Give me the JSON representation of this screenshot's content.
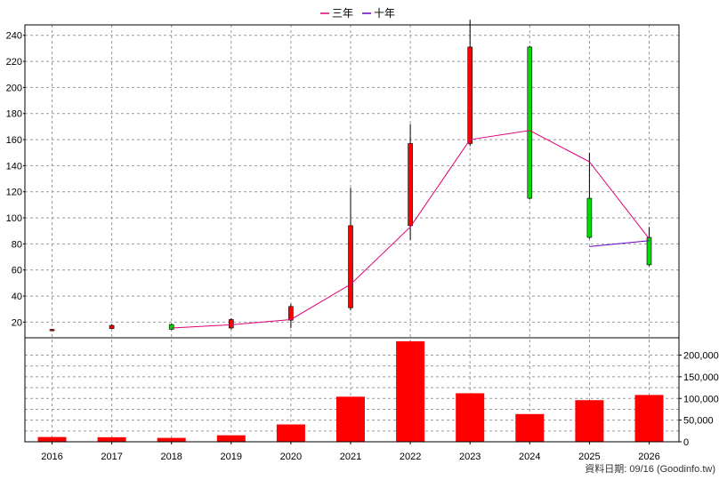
{
  "chart_data": {
    "type": "candlestick",
    "legend_position": "top-center",
    "grid": true,
    "categories": [
      "2016",
      "2017",
      "2018",
      "2019",
      "2020",
      "2021",
      "2022",
      "2023",
      "2024",
      "2025",
      "2026"
    ],
    "price_panel": {
      "ylim": [
        8,
        248
      ],
      "yticks": [
        20,
        40,
        60,
        80,
        100,
        120,
        140,
        160,
        180,
        200,
        220,
        240
      ],
      "candles": [
        {
          "year": "2016",
          "open": 14.2,
          "close": 14.4,
          "high": 14.8,
          "low": 13.4
        },
        {
          "year": "2017",
          "open": 15.0,
          "close": 17.5,
          "high": 18.2,
          "low": 14.8
        },
        {
          "year": "2018",
          "open": 18.2,
          "close": 14.5,
          "high": 19.0,
          "low": 14.0
        },
        {
          "year": "2019",
          "open": 15.5,
          "close": 22.0,
          "high": 23.0,
          "low": 14.5
        },
        {
          "year": "2020",
          "open": 21.5,
          "close": 32.0,
          "high": 34.0,
          "low": 15.5
        },
        {
          "year": "2021",
          "open": 31.0,
          "close": 94.0,
          "high": 123.0,
          "low": 29.0
        },
        {
          "year": "2022",
          "open": 94.0,
          "close": 157.0,
          "high": 172.0,
          "low": 83.0
        },
        {
          "year": "2023",
          "open": 157.0,
          "close": 231.0,
          "high": 252.0,
          "low": 155.0
        },
        {
          "year": "2024",
          "open": 231.0,
          "close": 115.0,
          "high": 232.0,
          "low": 114.0
        },
        {
          "year": "2025",
          "open": 115.0,
          "close": 85.0,
          "high": 150.0,
          "low": 84.0
        },
        {
          "year": "2026",
          "open": 85.0,
          "close": 64.0,
          "high": 93.0,
          "low": 63.0
        }
      ],
      "series": [
        {
          "name": "三年",
          "color": "#dd0077",
          "points": [
            [
              "2018",
              15.5
            ],
            [
              "2019",
              18.0
            ],
            [
              "2020",
              22.0
            ],
            [
              "2021",
              49.0
            ],
            [
              "2022",
              93.0
            ],
            [
              "2023",
              160.0
            ],
            [
              "2024",
              167.0
            ],
            [
              "2025",
              143.0
            ],
            [
              "2026",
              84.0
            ]
          ]
        },
        {
          "name": "十年",
          "color": "#6600cc",
          "points": [
            [
              "2025",
              78.0
            ],
            [
              "2026",
              82.5
            ]
          ]
        }
      ]
    },
    "volume_panel": {
      "ylim": [
        0,
        240000
      ],
      "yticks": [
        0,
        50000,
        100000,
        150000,
        200000
      ],
      "ytick_labels": [
        "0",
        "50,000",
        "100,000",
        "150,000",
        "200,000"
      ],
      "values": [
        11000,
        10500,
        9000,
        15000,
        40000,
        104000,
        232000,
        112000,
        64000,
        96000,
        108000
      ]
    },
    "colors": {
      "up": "#ff0000",
      "down": "#00dd00",
      "volume": "#ff0000"
    }
  },
  "footer": {
    "source_text": "資料日期: 09/16  (Goodinfo.tw)"
  }
}
